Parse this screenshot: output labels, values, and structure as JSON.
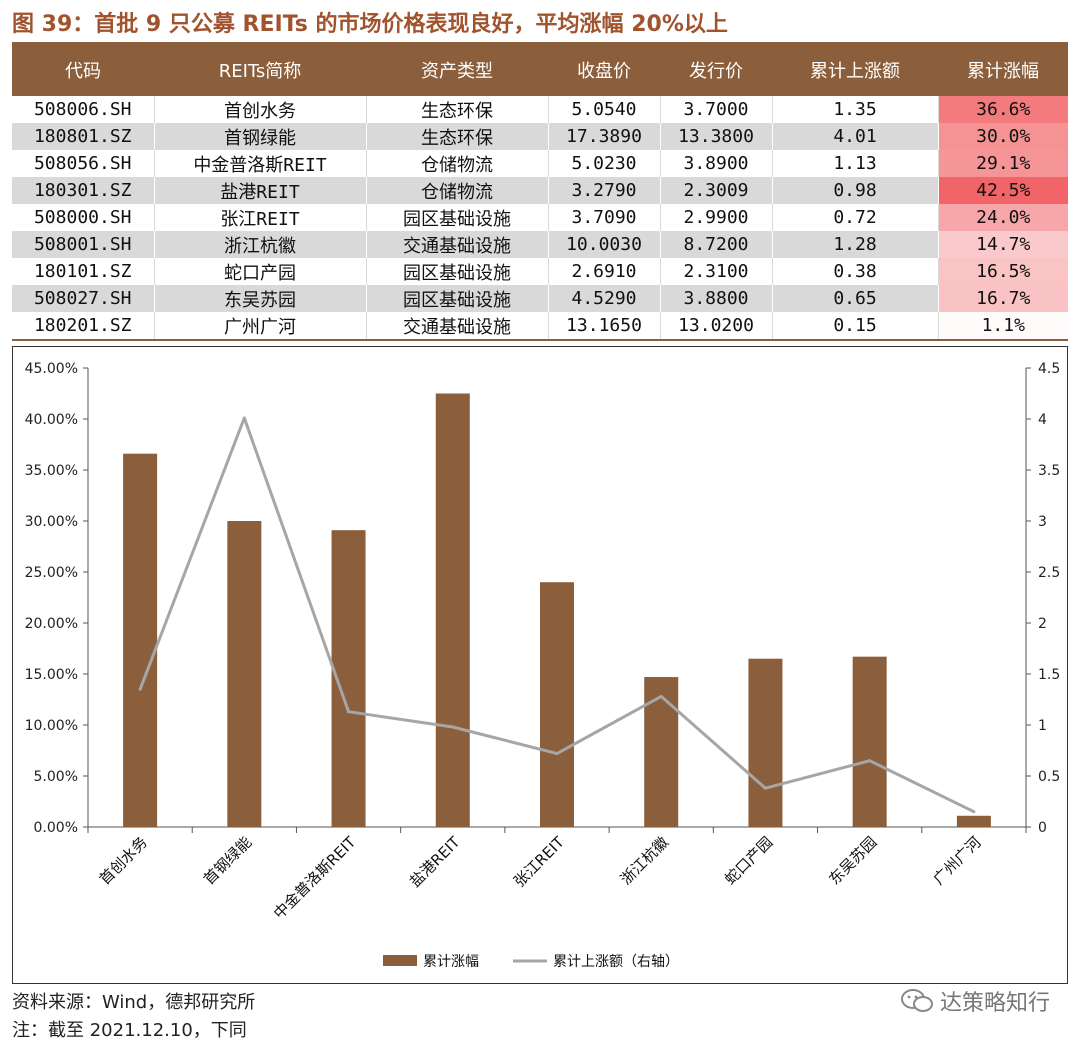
{
  "title": "图 39：首批 9 只公募 REITs 的市场价格表现良好，平均涨幅 20%以上",
  "colors": {
    "bar": "#8B5E3C",
    "line": "#A6A6A6",
    "header": "#8B5E3C",
    "title": "#A0532D"
  },
  "table": {
    "headers": [
      "代码",
      "REITs简称",
      "资产类型",
      "收盘价",
      "发行价",
      "累计上涨额",
      "累计涨幅"
    ],
    "rows": [
      [
        "508006.SH",
        "首创水务",
        "生态环保",
        "5.0540",
        "3.7000",
        "1.35",
        "36.6%"
      ],
      [
        "180801.SZ",
        "首钢绿能",
        "生态环保",
        "17.3890",
        "13.3800",
        "4.01",
        "30.0%"
      ],
      [
        "508056.SH",
        "中金普洛斯REIT",
        "仓储物流",
        "5.0230",
        "3.8900",
        "1.13",
        "29.1%"
      ],
      [
        "180301.SZ",
        "盐港REIT",
        "仓储物流",
        "3.2790",
        "2.3009",
        "0.98",
        "42.5%"
      ],
      [
        "508000.SH",
        "张江REIT",
        "园区基础设施",
        "3.7090",
        "2.9900",
        "0.72",
        "24.0%"
      ],
      [
        "508001.SH",
        "浙江杭徽",
        "交通基础设施",
        "10.0030",
        "8.7200",
        "1.28",
        "14.7%"
      ],
      [
        "180101.SZ",
        "蛇口产园",
        "园区基础设施",
        "2.6910",
        "2.3100",
        "0.38",
        "16.5%"
      ],
      [
        "508027.SH",
        "东吴苏园",
        "园区基础设施",
        "4.5290",
        "3.8800",
        "0.65",
        "16.7%"
      ],
      [
        "180201.SZ",
        "广州广河",
        "交通基础设施",
        "13.1650",
        "13.0200",
        "0.15",
        "1.1%"
      ]
    ],
    "heat_values": [
      36.6,
      30.0,
      29.1,
      42.5,
      24.0,
      14.7,
      16.5,
      16.7,
      1.1
    ]
  },
  "chart_data": {
    "type": "bar",
    "categories": [
      "首创水务",
      "首钢绿能",
      "中金普洛斯REIT",
      "盐港REIT",
      "张江REIT",
      "浙江杭徽",
      "蛇口产园",
      "东吴苏园",
      "广州广河"
    ],
    "series": [
      {
        "name": "累计涨幅",
        "type": "bar",
        "axis": "left",
        "values": [
          36.6,
          30.0,
          29.1,
          42.5,
          24.0,
          14.7,
          16.5,
          16.7,
          1.1
        ]
      },
      {
        "name": "累计上涨额（右轴）",
        "type": "line",
        "axis": "right",
        "values": [
          1.35,
          4.01,
          1.13,
          0.98,
          0.72,
          1.28,
          0.38,
          0.65,
          0.15
        ]
      }
    ],
    "ylim_left": [
      0,
      45
    ],
    "ylim_right": [
      0,
      4.5
    ],
    "yticks_left": [
      "0.00%",
      "5.00%",
      "10.00%",
      "15.00%",
      "20.00%",
      "25.00%",
      "30.00%",
      "35.00%",
      "40.00%",
      "45.00%"
    ],
    "yticks_right": [
      "0",
      "0.5",
      "1",
      "1.5",
      "2",
      "2.5",
      "3",
      "3.5",
      "4",
      "4.5"
    ],
    "legend": [
      "累计涨幅",
      "累计上涨额（右轴）"
    ],
    "legend_position": "bottom-center"
  },
  "notes": {
    "source": "资料来源：Wind，德邦研究所",
    "note": "注：截至 2021.12.10，下同"
  },
  "watermark": "达策略知行"
}
